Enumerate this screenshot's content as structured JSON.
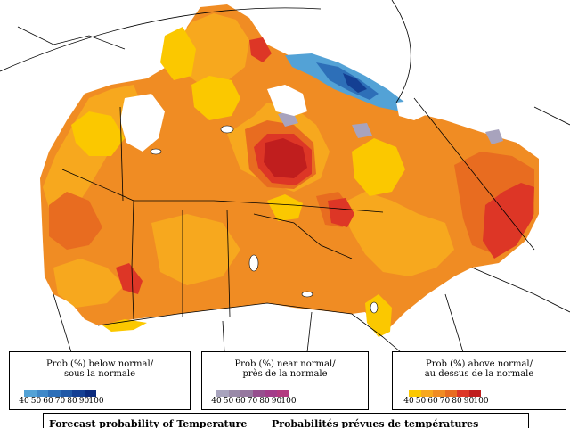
{
  "colors": {
    "below": [
      "#53a2d6",
      "#3f88c8",
      "#2d6fb8",
      "#2058a6",
      "#143f93",
      "#0a2a7d"
    ],
    "near": [
      "#a8a3bd",
      "#998aa8",
      "#96789f",
      "#964f8e",
      "#a33d8a",
      "#b33a80"
    ],
    "above": [
      "#fbc800",
      "#f7a81e",
      "#f08c23",
      "#e86c20",
      "#dd3626",
      "#c01e1e"
    ]
  },
  "legend": {
    "below": {
      "line1": "Prob (%) below normal/",
      "line2": "sous la normale",
      "ticks": [
        "40",
        "50",
        "60",
        "70",
        "80",
        "90",
        "100"
      ]
    },
    "near": {
      "line1": "Prob (%) near normal/",
      "line2": "près de la normale",
      "ticks": [
        "40",
        "50",
        "60",
        "70",
        "80",
        "90",
        "100"
      ]
    },
    "above": {
      "line1": "Prob (%) above normal/",
      "line2": "au dessus de la normale",
      "ticks": [
        "40",
        "50",
        "60",
        "70",
        "80",
        "90",
        "100"
      ]
    }
  },
  "footer": {
    "en": "Forecast probability of Temperature",
    "fr": "Probabilités prévues de températures"
  }
}
